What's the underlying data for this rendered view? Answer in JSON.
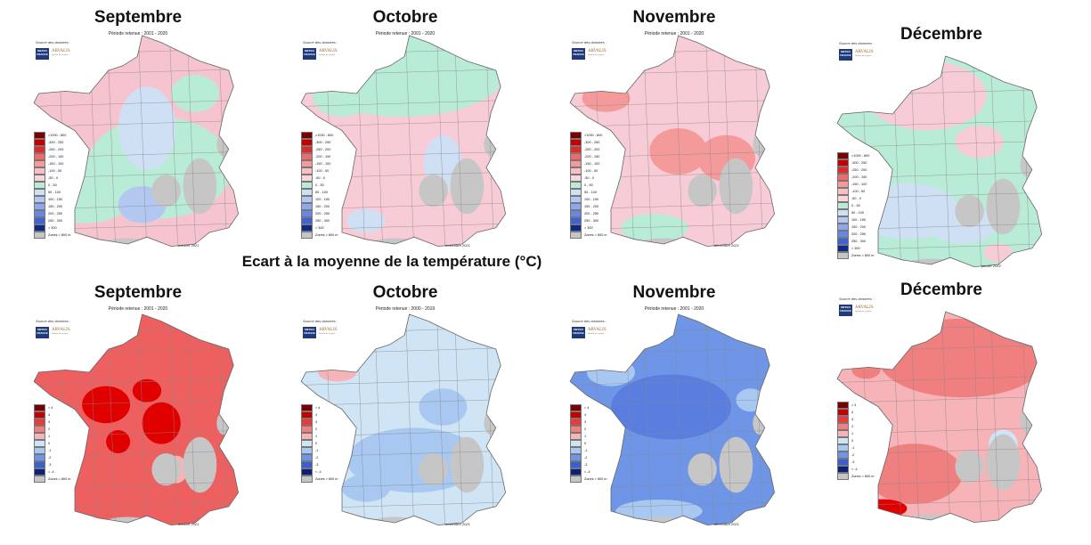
{
  "heading": "Ecart à la moyenne de la température (°C)",
  "source_label": "Source des données :",
  "logos": {
    "meteo": "METEO FRANCE",
    "arvalis": "ARVALIS",
    "arvalis_sub": "Institut du végétal"
  },
  "legends": {
    "precip": {
      "items": [
        ">1000 - 800",
        "-300 - 250",
        "-250 - 200",
        "-200 - 150",
        "-150 - 100",
        "-100 - 50",
        "-50 - 0",
        "0 - 50",
        "50 - 100",
        "100 - 150",
        "150 - 200",
        "200 - 250",
        "250 - 300",
        "> 300"
      ],
      "colors": [
        "#7a0000",
        "#c40000",
        "#e02a2a",
        "#ef6a6a",
        "#f59a9a",
        "#f8bfc6",
        "#fad6dc",
        "#b9ecd6",
        "#cfe0f5",
        "#b3c8f0",
        "#8fa8ec",
        "#6688e4",
        "#3f62d6",
        "#0d2a8a"
      ],
      "zones": "Zones > 800 m"
    },
    "temp": {
      "items": [
        "> 4",
        "4",
        "3",
        "2",
        "1",
        "0",
        "-1",
        "-2",
        "-3",
        "< -4"
      ],
      "colors": [
        "#7a0000",
        "#c40000",
        "#ea3a3a",
        "#f08080",
        "#f6b3b8",
        "#cfe4f5",
        "#a8c8f2",
        "#6f96e6",
        "#3a5fd0",
        "#0d1f7a"
      ],
      "zones": "Zones > 800 m"
    }
  },
  "panels": [
    {
      "month": "Septembre",
      "period": "Période retenue : 2001 - 2020",
      "date": "octobre 2021",
      "kind": "precip",
      "base": "#f6c4ce",
      "blobs": [
        [
          "#b9ecd6",
          0.55,
          0.62,
          0.3,
          0.22
        ],
        [
          "#b9ecd6",
          0.25,
          0.72,
          0.2,
          0.14
        ],
        [
          "#cfe0f5",
          0.5,
          0.45,
          0.12,
          0.18
        ],
        [
          "#b3c8f0",
          0.48,
          0.78,
          0.1,
          0.08
        ],
        [
          "#b9ecd6",
          0.7,
          0.3,
          0.1,
          0.08
        ]
      ]
    },
    {
      "month": "Octobre",
      "period": "Période retenue : 2001 - 2020",
      "date": "novembre 2021",
      "kind": "precip",
      "base": "#f8ccd6",
      "blobs": [
        [
          "#b9ecd6",
          0.45,
          0.22,
          0.42,
          0.18
        ],
        [
          "#b9ecd6",
          0.2,
          0.32,
          0.12,
          0.08
        ],
        [
          "#cfe0f5",
          0.62,
          0.6,
          0.08,
          0.12
        ],
        [
          "#cfe0f5",
          0.3,
          0.85,
          0.08,
          0.05
        ]
      ]
    },
    {
      "month": "Novembre",
      "period": "Période retenue : 2001 - 2020",
      "date": "décembre 2021",
      "kind": "precip",
      "base": "#f8ccd6",
      "blobs": [
        [
          "#f59a9a",
          0.18,
          0.32,
          0.1,
          0.06
        ],
        [
          "#f59a9a",
          0.48,
          0.55,
          0.12,
          0.1
        ],
        [
          "#f59a9a",
          0.68,
          0.58,
          0.12,
          0.1
        ],
        [
          "#b9ecd6",
          0.38,
          0.88,
          0.14,
          0.06
        ],
        [
          "#b9ecd6",
          0.18,
          0.68,
          0.06,
          0.06
        ]
      ]
    },
    {
      "month": "Décembre",
      "period": "",
      "date": "janvier 2022",
      "kind": "precip",
      "base": "#b9ecd6",
      "blobs": [
        [
          "#f8ccd6",
          0.4,
          0.22,
          0.25,
          0.15
        ],
        [
          "#f8ccd6",
          0.62,
          0.42,
          0.1,
          0.07
        ],
        [
          "#cfe0f5",
          0.32,
          0.72,
          0.22,
          0.12
        ],
        [
          "#cfe0f5",
          0.55,
          0.78,
          0.14,
          0.08
        ],
        [
          "#f8ccd6",
          0.7,
          0.9,
          0.06,
          0.04
        ]
      ]
    },
    {
      "month": "Septembre",
      "period": "Période retenue : 2001 - 2020",
      "date": "octobre 2021",
      "kind": "temp",
      "base": "#ee5f5f",
      "blobs": [
        [
          "#e00000",
          0.33,
          0.44,
          0.1,
          0.08
        ],
        [
          "#e00000",
          0.5,
          0.38,
          0.06,
          0.05
        ],
        [
          "#e00000",
          0.56,
          0.52,
          0.08,
          0.09
        ],
        [
          "#e00000",
          0.38,
          0.6,
          0.05,
          0.05
        ],
        [
          "#f6b3b8",
          0.62,
          0.72,
          0.05,
          0.06
        ]
      ]
    },
    {
      "month": "Octobre",
      "period": "Période retenue : 2000 - 2019",
      "date": "novembre 2021",
      "kind": "temp",
      "base": "#cfe4f5",
      "blobs": [
        [
          "#a8c8f2",
          0.5,
          0.68,
          0.28,
          0.14
        ],
        [
          "#a8c8f2",
          0.62,
          0.45,
          0.1,
          0.08
        ],
        [
          "#f6b3b8",
          0.18,
          0.3,
          0.08,
          0.04
        ],
        [
          "#f6b3b8",
          0.25,
          0.2,
          0.06,
          0.03
        ],
        [
          "#a8c8f2",
          0.3,
          0.8,
          0.1,
          0.06
        ]
      ]
    },
    {
      "month": "Novembre",
      "period": "Période retenue : 2001 - 2020",
      "date": "décembre 2021",
      "kind": "temp",
      "base": "#6f96e6",
      "blobs": [
        [
          "#5a7ee0",
          0.45,
          0.45,
          0.25,
          0.14
        ],
        [
          "#a8c8f2",
          0.2,
          0.3,
          0.1,
          0.06
        ],
        [
          "#a8c8f2",
          0.78,
          0.42,
          0.06,
          0.05
        ],
        [
          "#a8c8f2",
          0.4,
          0.9,
          0.18,
          0.05
        ]
      ]
    },
    {
      "month": "Décembre",
      "period": "",
      "date": "",
      "kind": "temp",
      "base": "#f6b3b8",
      "blobs": [
        [
          "#f08080",
          0.55,
          0.25,
          0.35,
          0.17
        ],
        [
          "#f08080",
          0.35,
          0.75,
          0.2,
          0.13
        ],
        [
          "#e00000",
          0.22,
          0.9,
          0.1,
          0.04
        ],
        [
          "#cfe4f5",
          0.72,
          0.62,
          0.06,
          0.06
        ],
        [
          "#f08080",
          0.15,
          0.3,
          0.06,
          0.04
        ]
      ]
    }
  ]
}
